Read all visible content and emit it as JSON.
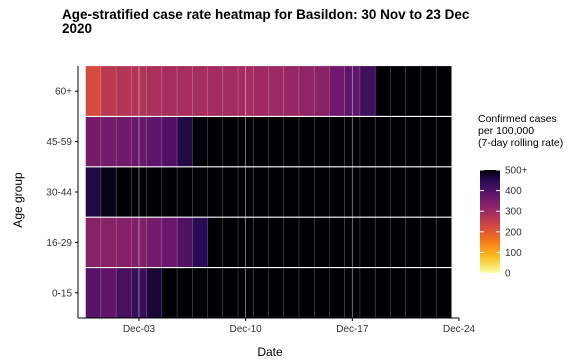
{
  "chart_data": {
    "type": "heatmap",
    "title": "Age-stratified case rate heatmap for Basildon: 30 Nov to 23 Dec 2020",
    "xlabel": "Date",
    "ylabel": "Age group",
    "x": [
      "2020-11-30",
      "2020-12-01",
      "2020-12-02",
      "2020-12-03",
      "2020-12-04",
      "2020-12-05",
      "2020-12-06",
      "2020-12-07",
      "2020-12-08",
      "2020-12-09",
      "2020-12-10",
      "2020-12-11",
      "2020-12-12",
      "2020-12-13",
      "2020-12-14",
      "2020-12-15",
      "2020-12-16",
      "2020-12-17",
      "2020-12-18",
      "2020-12-19",
      "2020-12-20",
      "2020-12-21",
      "2020-12-22",
      "2020-12-23"
    ],
    "x_ticks": [
      {
        "date": "2020-12-03",
        "label": "Dec-03"
      },
      {
        "date": "2020-12-10",
        "label": "Dec-10"
      },
      {
        "date": "2020-12-17",
        "label": "Dec-17"
      },
      {
        "date": "2020-12-24",
        "label": "Dec-24"
      }
    ],
    "xlim": [
      "2020-11-29",
      "2020-12-24"
    ],
    "y": [
      "0-15",
      "16-29",
      "30-44",
      "45-59",
      "60+"
    ],
    "series": [
      {
        "name": "0-15",
        "values": [
          390,
          380,
          410,
          430,
          470,
          500,
          500,
          500,
          500,
          500,
          500,
          500,
          500,
          500,
          500,
          500,
          500,
          500,
          500,
          500,
          500,
          500,
          500,
          500
        ]
      },
      {
        "name": "16-29",
        "values": [
          330,
          330,
          335,
          340,
          355,
          370,
          400,
          450,
          500,
          500,
          500,
          500,
          500,
          500,
          500,
          500,
          500,
          500,
          500,
          500,
          500,
          500,
          500,
          500
        ]
      },
      {
        "name": "30-44",
        "values": [
          460,
          490,
          500,
          500,
          500,
          500,
          500,
          500,
          500,
          500,
          500,
          500,
          500,
          500,
          500,
          500,
          500,
          500,
          500,
          500,
          500,
          500,
          500,
          500
        ]
      },
      {
        "name": "45-59",
        "values": [
          350,
          355,
          360,
          370,
          380,
          400,
          460,
          500,
          500,
          500,
          500,
          500,
          500,
          500,
          500,
          500,
          500,
          500,
          500,
          500,
          500,
          500,
          500,
          500
        ]
      },
      {
        "name": "60+",
        "values": [
          220,
          260,
          270,
          275,
          285,
          290,
          290,
          290,
          295,
          295,
          295,
          300,
          305,
          310,
          320,
          330,
          360,
          380,
          420,
          500,
          500,
          500,
          500,
          500
        ]
      }
    ],
    "colorbar": {
      "title": [
        "Confirmed cases",
        "per 100,000",
        "(7-day rolling rate)"
      ],
      "ticks": [
        "500+",
        "400",
        "300",
        "200",
        "100",
        "0"
      ],
      "range": [
        0,
        500
      ]
    },
    "grid": true,
    "legend_position": "right"
  }
}
